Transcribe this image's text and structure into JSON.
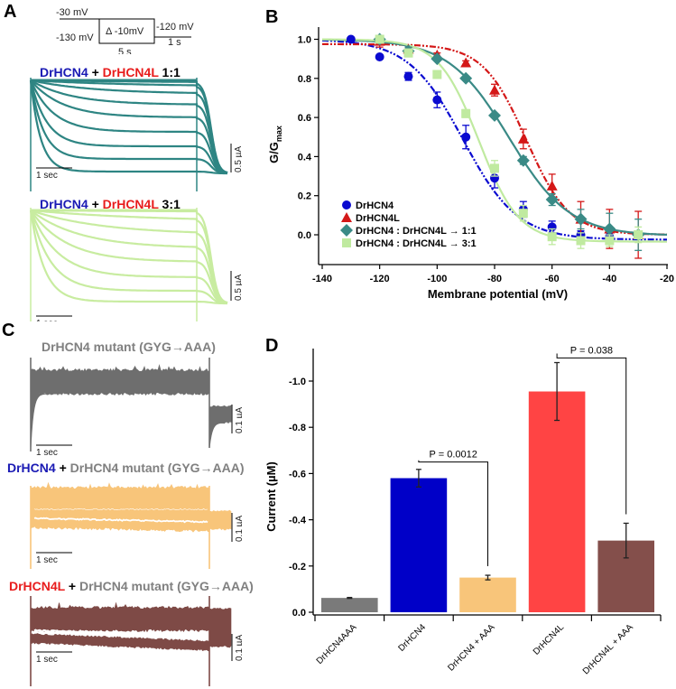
{
  "panels": {
    "a": {
      "letter": "A",
      "protocol": {
        "hold_label": "-30 mV",
        "start_label": "-130 mV",
        "step_label": "Δ -10mV",
        "tail_label": "-120 mV",
        "step_duration": "5 s",
        "tail_duration": "1 s"
      },
      "traces": [
        {
          "title_parts": [
            {
              "text": "DrHCN4",
              "color": "#1a1ab4"
            },
            {
              "text": " + ",
              "color": "#000000"
            },
            {
              "text": "DrHCN4L",
              "color": "#e81c1c"
            },
            {
              "text": " 1:1",
              "color": "#000000"
            }
          ],
          "color": "#2e8583",
          "time_scale": "1 sec",
          "current_scale": "0.5 µA"
        },
        {
          "title_parts": [
            {
              "text": "DrHCN4",
              "color": "#1a1ab4"
            },
            {
              "text": " + ",
              "color": "#000000"
            },
            {
              "text": "DrHCN4L",
              "color": "#e81c1c"
            },
            {
              "text": " 3:1",
              "color": "#000000"
            }
          ],
          "color": "#c8eca0",
          "time_scale": "1 sec",
          "current_scale": "0.5 µA"
        }
      ]
    },
    "b": {
      "letter": "B"
    },
    "c": {
      "letter": "C",
      "traces": [
        {
          "title_parts": [
            {
              "text": "DrHCN4 mutant (GYG→AAA)",
              "color": "#808080"
            }
          ],
          "color": "#6e6e6e",
          "time_scale": "1 sec",
          "current_scale": "0.1 µA"
        },
        {
          "title_parts": [
            {
              "text": "DrHCN4",
              "color": "#1a1ab4"
            },
            {
              "text": " + ",
              "color": "#000000"
            },
            {
              "text": "DrHCN4 mutant (GYG→AAA)",
              "color": "#808080"
            }
          ],
          "color": "#f8c57a",
          "time_scale": "1 sec",
          "current_scale": "0.1 µA"
        },
        {
          "title_parts": [
            {
              "text": "DrHCN4L",
              "color": "#e81c1c"
            },
            {
              "text": " + ",
              "color": "#000000"
            },
            {
              "text": "DrHCN4 mutant (GYG→AAA)",
              "color": "#808080"
            }
          ],
          "color": "#7e4a46",
          "time_scale": "1 sec",
          "current_scale": "0.1 µA"
        }
      ]
    },
    "d": {
      "letter": "D"
    }
  },
  "chart_data": [
    {
      "id": "B",
      "type": "scatter",
      "title": "",
      "xlabel": "Membrane potential (mV)",
      "ylabel": "G/Gmax",
      "xlim": [
        -140,
        -20
      ],
      "ylim": [
        -0.12,
        1.05
      ],
      "xticks": [
        -140,
        -120,
        -100,
        -80,
        -60,
        -40,
        -20
      ],
      "yticks": [
        0.0,
        0.2,
        0.4,
        0.6,
        0.8,
        1.0
      ],
      "xtick_labels": [
        "-140",
        "-120",
        "-100",
        "-80",
        "-60",
        "-40",
        "-20"
      ],
      "ytick_labels": [
        "0.0",
        "0.2",
        "0.4",
        "0.6",
        "0.8",
        "1.0"
      ],
      "legend_position": "bottom-left",
      "grid": false,
      "series": [
        {
          "name": "DrHCN4",
          "color": "#0a0ad0",
          "marker": "circle",
          "line": "dash-dot-dot",
          "x": [
            -130,
            -120,
            -110,
            -100,
            -90,
            -80,
            -70,
            -60,
            -50,
            -40,
            -30
          ],
          "y": [
            1.0,
            0.91,
            0.81,
            0.69,
            0.5,
            0.29,
            0.13,
            0.04,
            0.0,
            -0.01,
            0.0
          ],
          "err": [
            0.0,
            0.01,
            0.02,
            0.04,
            0.06,
            0.05,
            0.04,
            0.03,
            0.02,
            0.02,
            0.02
          ],
          "fit": {
            "v_half": -91,
            "slope": 9.5,
            "top": 1.0,
            "bottom": -0.025
          }
        },
        {
          "name": "DrHCN4L",
          "color": "#d41818",
          "marker": "triangle",
          "line": "dash-dot-dot",
          "x": [
            -120,
            -110,
            -100,
            -90,
            -80,
            -70,
            -60,
            -50,
            -40,
            -30
          ],
          "y": [
            0.99,
            0.95,
            0.92,
            0.88,
            0.74,
            0.49,
            0.25,
            0.08,
            0.03,
            0.0
          ],
          "err": [
            0.03,
            0.01,
            0.01,
            0.01,
            0.03,
            0.05,
            0.06,
            0.09,
            0.1,
            0.12
          ],
          "fit": {
            "v_half": -69,
            "slope": 7.5,
            "top": 0.975,
            "bottom": 0.0
          }
        },
        {
          "name": "DrHCN4 : DrHCN4L → 1:1",
          "color": "#3a8a86",
          "marker": "diamond",
          "line": "solid",
          "x": [
            -120,
            -110,
            -100,
            -90,
            -80,
            -70,
            -60,
            -50,
            -40,
            -30
          ],
          "y": [
            1.0,
            0.94,
            0.9,
            0.8,
            0.61,
            0.38,
            0.18,
            0.08,
            0.03,
            0.0
          ],
          "err": [
            0.01,
            0.02,
            0.01,
            0.01,
            0.01,
            0.02,
            0.03,
            0.05,
            0.08,
            0.08
          ],
          "fit": {
            "v_half": -75,
            "slope": 10.5,
            "top": 1.0,
            "bottom": -0.005
          }
        },
        {
          "name": "DrHCN4 : DrHCN4L → 3:1",
          "color": "#c0eaa0",
          "marker": "square",
          "line": "solid",
          "x": [
            -120,
            -110,
            -100,
            -90,
            -80,
            -70,
            -60,
            -50,
            -40,
            -30
          ],
          "y": [
            1.0,
            0.93,
            0.82,
            0.62,
            0.34,
            0.11,
            -0.01,
            -0.03,
            -0.03,
            0.0
          ],
          "err": [
            0.02,
            0.02,
            0.02,
            0.02,
            0.04,
            0.04,
            0.04,
            0.04,
            0.03,
            0.04
          ],
          "fit": {
            "v_half": -85.5,
            "slope": 7.0,
            "top": 1.0,
            "bottom": -0.035
          }
        }
      ]
    },
    {
      "id": "D",
      "type": "bar",
      "title": "",
      "xlabel": "",
      "ylabel": "Current (µM)",
      "ylim": [
        0.0,
        -1.1
      ],
      "yticks": [
        0.0,
        -0.2,
        -0.4,
        -0.6,
        -0.8,
        -1.0
      ],
      "ytick_labels": [
        "0.0",
        "-0.2",
        "-0.4",
        "-0.6",
        "-0.8",
        "-1.0"
      ],
      "categories": [
        "DrHCN4AAA",
        "DrHCN4",
        "DrHCN4 + AAA",
        "DrHCN4L",
        "DrHCN4L + AAA"
      ],
      "values": [
        -0.062,
        -0.58,
        -0.15,
        -0.955,
        -0.31
      ],
      "errors": [
        0.002,
        0.038,
        0.01,
        0.125,
        0.075
      ],
      "colors": [
        "#7a7a7a",
        "#0000c8",
        "#f8c57a",
        "#ff4444",
        "#844f4b"
      ],
      "annotations": [
        {
          "text": "P = 0.0012",
          "from": 1,
          "to": 2,
          "level": -0.65
        },
        {
          "text": "P = 0.038",
          "from": 3,
          "to": 4,
          "level": -1.1
        }
      ]
    }
  ]
}
